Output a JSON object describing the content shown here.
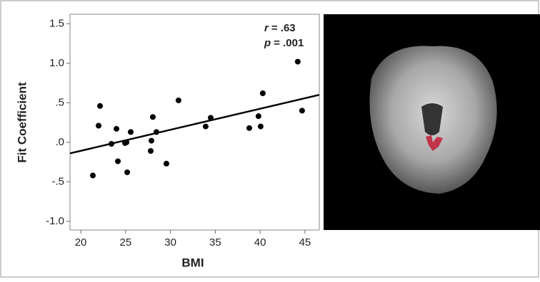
{
  "chart_data": {
    "type": "scatter",
    "x_label": "BMI",
    "y_label": "Fit Coefficient",
    "annotations": [
      {
        "symbol": "r",
        "text": "= .63"
      },
      {
        "symbol": "p",
        "text": "= .001"
      }
    ],
    "x": [
      21.35,
      22.15,
      21.99,
      23.98,
      23.42,
      24.14,
      24.94,
      25.18,
      25.1,
      25.57,
      28.04,
      27.88,
      27.8,
      28.44,
      29.55,
      30.9,
      33.93,
      34.49,
      38.79,
      39.82,
      40.06,
      40.3,
      44.2,
      44.68
    ],
    "values": [
      -0.42,
      0.46,
      0.21,
      0.17,
      -0.02,
      -0.24,
      -0.01,
      -0.38,
      0.0,
      0.13,
      0.32,
      0.02,
      -0.11,
      0.13,
      -0.27,
      0.53,
      0.2,
      0.31,
      0.18,
      0.33,
      0.2,
      0.62,
      1.02,
      0.4
    ],
    "color": "#000000",
    "fit_line": {
      "x": [
        18.8,
        46.6
      ],
      "y": [
        -0.14,
        0.6
      ]
    },
    "xlim": [
      18.8,
      46.6
    ],
    "xticks": [
      20,
      25,
      30,
      35,
      40,
      45
    ],
    "ylim": [
      -1.11,
      1.62
    ],
    "yticks": [
      1.5,
      {
        "value": 1.0,
        "label": "1.0"
      },
      {
        "value": 0.5,
        "label": ".5"
      },
      {
        "value": 0,
        "label": ".0"
      },
      {
        "value": -0.5,
        "label": "-.5"
      },
      {
        "value": -1.0,
        "label": "-1.0"
      }
    ],
    "grid": false
  }
}
